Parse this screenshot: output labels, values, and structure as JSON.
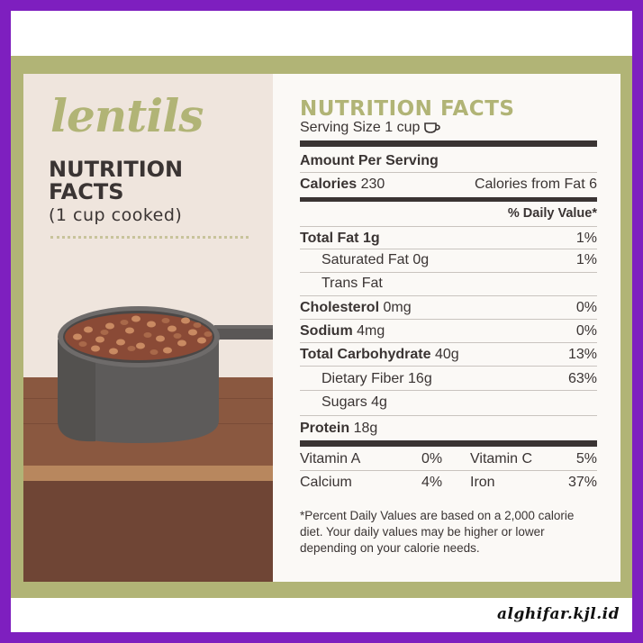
{
  "left": {
    "brand": "lentils",
    "heading_line1": "NUTRITION",
    "heading_line2": "FACTS",
    "subheading": "(1 cup cooked)"
  },
  "panel": {
    "title": "NUTRITION FACTS",
    "serving_size": "Serving Size 1 cup",
    "amount_per_serving": "Amount Per Serving",
    "calories_label": "Calories",
    "calories_value": "230",
    "calories_from_fat": "Calories from Fat 6",
    "daily_value_header": "% Daily Value*"
  },
  "nutrients": [
    {
      "label": "Total Fat",
      "amount": "1g",
      "dv": "1%"
    },
    {
      "label": "Saturated Fat",
      "amount": "0g",
      "dv": "1%"
    },
    {
      "label": "Trans Fat",
      "amount": "",
      "dv": ""
    },
    {
      "label": "Cholesterol",
      "amount": "0mg",
      "dv": "0%"
    },
    {
      "label": "Sodium",
      "amount": "4mg",
      "dv": "0%"
    },
    {
      "label": "Total Carbohydrate",
      "amount": "40g",
      "dv": "13%"
    },
    {
      "label": "Dietary Fiber",
      "amount": "16g",
      "dv": "63%"
    },
    {
      "label": "Sugars",
      "amount": "4g",
      "dv": ""
    },
    {
      "label": "Protein",
      "amount": "18g",
      "dv": ""
    }
  ],
  "vitamins": [
    {
      "label1": "Vitamin A",
      "val1": "0%",
      "label2": "Vitamin C",
      "val2": "5%"
    },
    {
      "label1": "Calcium",
      "val1": "4%",
      "label2": "Iron",
      "val2": "37%"
    }
  ],
  "footnote": "*Percent Daily Values are based on a 2,000 calorie diet. Your daily values may be higher or lower depending on your calorie needs.",
  "watermark": "alghifar.kjl.id",
  "icons": {
    "serving": "cup-icon"
  },
  "colors": {
    "accent": "#b1b476",
    "frame": "#7e1fbf",
    "text": "#3a3433"
  }
}
